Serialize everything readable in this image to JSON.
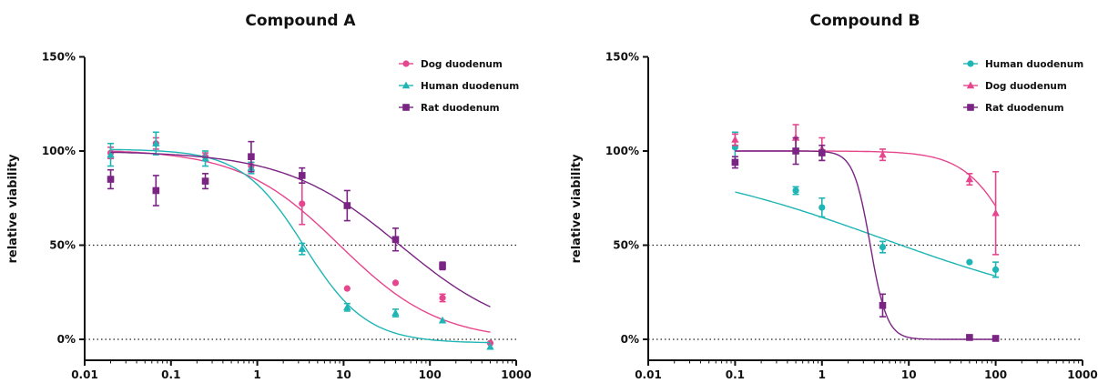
{
  "colors": {
    "dog": "#E6468E",
    "human": "#1FB5B5",
    "rat": "#7A2483"
  },
  "chart_data": [
    {
      "type": "scatter",
      "title": "Compound A",
      "ylabel": "relative viability",
      "xscale": "log",
      "xlim": [
        0.01,
        1000
      ],
      "ylim": [
        -0.1,
        1.5
      ],
      "xticks": [
        0.01,
        0.1,
        1,
        10,
        100,
        1000
      ],
      "xticklabels": [
        "0.01",
        "0.1",
        "1",
        "10",
        "100",
        "1000"
      ],
      "yticks": [
        0,
        0.5,
        1,
        1.5
      ],
      "yticklabels": [
        "0%",
        "50%",
        "100%",
        "150%"
      ],
      "reference_lines": [
        0,
        0.5
      ],
      "legend_position": "top-right",
      "series": [
        {
          "name": "Dog duodenum",
          "key": "dog",
          "marker": "circle",
          "x": [
            0.02,
            0.067,
            0.25,
            0.85,
            3.3,
            11,
            40,
            140,
            500
          ],
          "y": [
            0.99,
            1.04,
            0.97,
            0.92,
            0.72,
            0.27,
            0.3,
            0.22,
            -0.02
          ],
          "err": [
            0.03,
            0.03,
            0.02,
            0.02,
            0.11,
            0,
            0,
            0.02,
            0
          ],
          "fit": {
            "top": 1.01,
            "bottom": -0.01,
            "ec50": 9,
            "hill": 0.75
          }
        },
        {
          "name": "Human duodenum",
          "key": "human",
          "marker": "triangle",
          "x": [
            0.02,
            0.067,
            0.25,
            0.85,
            3.3,
            11,
            40,
            140,
            500
          ],
          "y": [
            0.98,
            1.04,
            0.96,
            0.91,
            0.48,
            0.17,
            0.14,
            0.1,
            -0.04
          ],
          "err": [
            0.06,
            0.06,
            0.04,
            0.03,
            0.03,
            0.02,
            0.02,
            0,
            0
          ],
          "fit": {
            "top": 1.01,
            "bottom": -0.02,
            "ec50": 3.5,
            "hill": 1.2
          }
        },
        {
          "name": "Rat duodenum",
          "key": "rat",
          "marker": "square",
          "x": [
            0.02,
            0.067,
            0.25,
            0.85,
            3.3,
            11,
            40,
            140
          ],
          "y": [
            0.85,
            0.79,
            0.84,
            0.97,
            0.87,
            0.71,
            0.53,
            0.39
          ],
          "err": [
            0.05,
            0.08,
            0.04,
            0.08,
            0.04,
            0.08,
            0.06,
            0.02
          ],
          "fit": {
            "top": 1.0,
            "bottom": 0,
            "ec50": 45,
            "hill": 0.65
          }
        }
      ]
    },
    {
      "type": "scatter",
      "title": "Compound B",
      "ylabel": "relative viability",
      "xscale": "log",
      "xlim": [
        0.01,
        1000
      ],
      "ylim": [
        -0.1,
        1.5
      ],
      "xticks": [
        0.01,
        0.1,
        1,
        10,
        100,
        1000
      ],
      "xticklabels": [
        "0.01",
        "0.1",
        "1",
        "10",
        "100",
        "1000"
      ],
      "yticks": [
        0,
        0.5,
        1,
        1.5
      ],
      "yticklabels": [
        "0%",
        "50%",
        "100%",
        "150%"
      ],
      "reference_lines": [
        0,
        0.5
      ],
      "legend_position": "top-right",
      "series": [
        {
          "name": "Human duodenum",
          "key": "human",
          "marker": "circle",
          "x": [
            0.1,
            0.5,
            1,
            5,
            50,
            100
          ],
          "y": [
            1.02,
            0.79,
            0.7,
            0.49,
            0.41,
            0.37
          ],
          "err": [
            0.08,
            0.02,
            0.05,
            0.03,
            0,
            0.04
          ],
          "fit": {
            "top": 0.97,
            "bottom": 0.1,
            "ec50": 5,
            "hill": 0.33
          },
          "fit_range": [
            0.1,
            100
          ]
        },
        {
          "name": "Dog duodenum",
          "key": "dog",
          "marker": "triangle",
          "x": [
            0.1,
            0.5,
            1,
            5,
            50,
            100
          ],
          "y": [
            1.06,
            1.07,
            1.01,
            0.98,
            0.85,
            0.67
          ],
          "err": [
            0.03,
            0.07,
            0.06,
            0.03,
            0.03,
            0.22
          ],
          "fit": {
            "top": 1.0,
            "bottom": 0,
            "ec50": 180,
            "hill": 1.5
          },
          "fit_range": [
            0.1,
            100
          ]
        },
        {
          "name": "Rat duodenum",
          "key": "rat",
          "marker": "square",
          "x": [
            0.1,
            0.5,
            1,
            5,
            50,
            100
          ],
          "y": [
            0.94,
            1.0,
            0.99,
            0.18,
            0.01,
            0.005
          ],
          "err": [
            0.03,
            0.07,
            0.04,
            0.06,
            0,
            0
          ],
          "fit": {
            "top": 1.0,
            "bottom": 0,
            "ec50": 3.6,
            "hill": 4.5
          },
          "fit_range": [
            0.1,
            100
          ]
        }
      ]
    }
  ]
}
